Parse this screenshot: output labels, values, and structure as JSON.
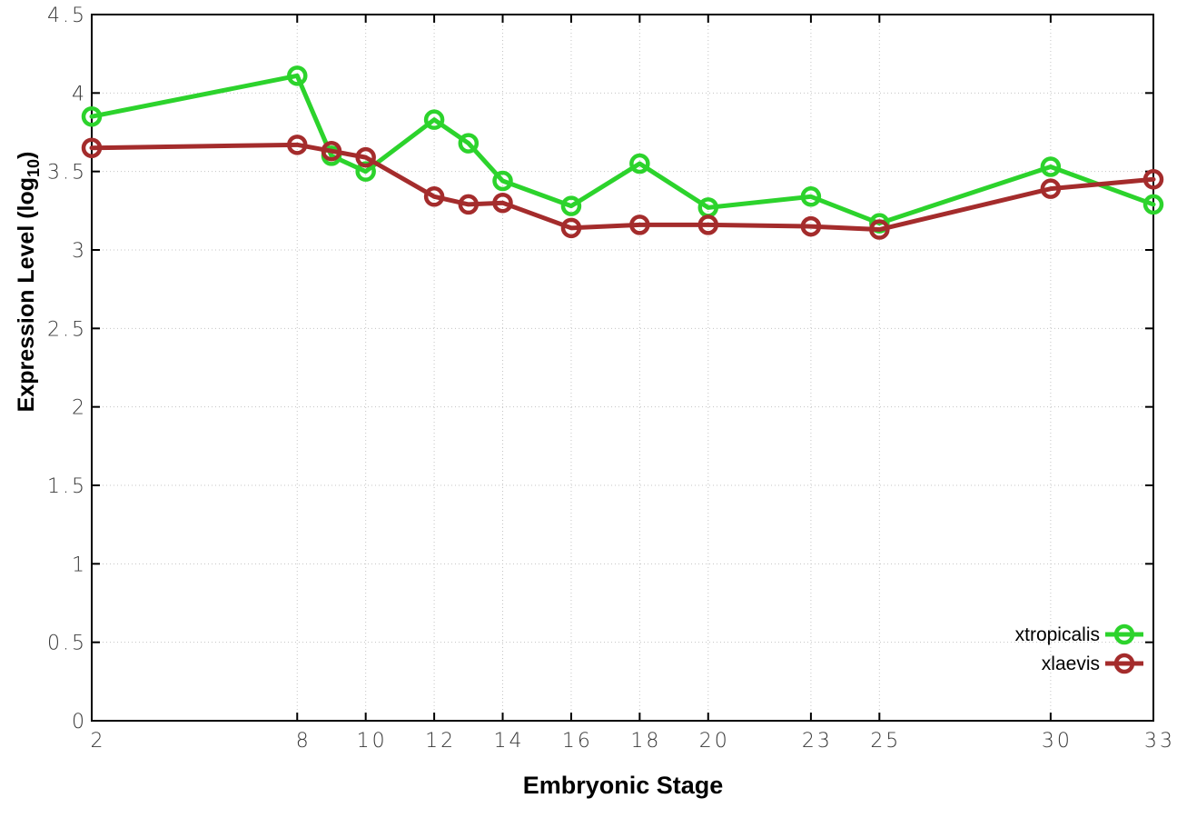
{
  "figure": {
    "background": "#ffffff",
    "border_color": "#000000",
    "grid_color": "#c4c4c4",
    "tick_label_color": "#383838"
  },
  "chart_data": {
    "type": "line",
    "title": "",
    "xlabel": "Embryonic Stage",
    "ylabel": "Expression Level (log10)",
    "ylabel_parts": {
      "main": "Expression Level (log",
      "sub": "10",
      "close": ")"
    },
    "xlim": [
      2,
      33
    ],
    "ylim": [
      0,
      4.5
    ],
    "grid": true,
    "legend_position": "bottom-right-inside",
    "x": [
      2,
      8,
      9,
      10,
      12,
      13,
      14,
      16,
      18,
      20,
      23,
      25,
      30,
      33
    ],
    "xticks": {
      "values": [
        2,
        8,
        10,
        12,
        14,
        16,
        18,
        20,
        23,
        25,
        30,
        33
      ],
      "labels": [
        "2",
        "8",
        "10",
        "12",
        "14",
        "16",
        "18",
        "20",
        "23",
        "25",
        "30",
        "33"
      ]
    },
    "yticks": {
      "values": [
        0,
        0.5,
        1,
        1.5,
        2,
        2.5,
        3,
        3.5,
        4,
        4.5
      ],
      "labels": [
        "0",
        "0.5",
        "1",
        "1.5",
        "2",
        "2.5",
        "3",
        "3.5",
        "4",
        "4.5"
      ]
    },
    "series": [
      {
        "name": "xtropicalis",
        "color": "#2cd32c",
        "marker": "open-circle",
        "values": [
          3.85,
          4.11,
          3.6,
          3.5,
          3.83,
          3.68,
          3.44,
          3.28,
          3.55,
          3.27,
          3.34,
          3.17,
          3.53,
          3.29
        ]
      },
      {
        "name": "xlaevis",
        "color": "#a42c2c",
        "marker": "open-circle",
        "values": [
          3.65,
          3.67,
          3.63,
          3.59,
          3.34,
          3.29,
          3.3,
          3.14,
          3.16,
          3.16,
          3.15,
          3.13,
          3.39,
          3.45
        ]
      }
    ]
  }
}
